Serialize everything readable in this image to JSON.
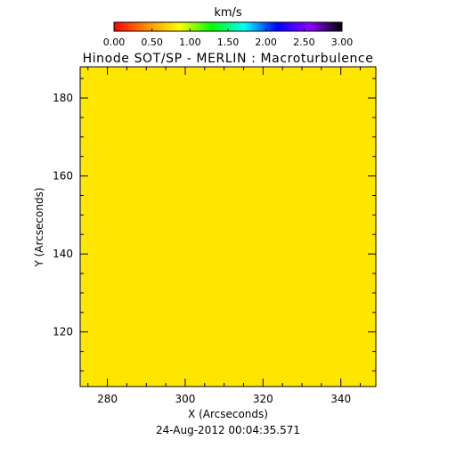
{
  "chart_data": {
    "type": "heatmap",
    "title": "Hinode SOT/SP - MERLIN : Macroturbulence",
    "xlabel": "X (Arcseconds)",
    "ylabel": "Y (Arcseconds)",
    "xlim": [
      273,
      349
    ],
    "ylim": [
      106,
      188
    ],
    "x_ticks": [
      280,
      300,
      320,
      340
    ],
    "y_ticks": [
      120,
      140,
      160,
      180
    ],
    "x_tick_labels": [
      "280",
      "300",
      "320",
      "340"
    ],
    "y_tick_labels": [
      "120",
      "140",
      "160",
      "180"
    ],
    "x_minor_step": 5,
    "y_minor_step": 5,
    "field_value_kms": 1.0,
    "field_color": "#ffe600",
    "colorbar": {
      "label": "km/s",
      "range": [
        0.0,
        3.0
      ],
      "ticks": [
        0.0,
        0.5,
        1.0,
        1.5,
        2.0,
        2.5,
        3.0
      ],
      "tick_labels": [
        "0.00",
        "0.50",
        "1.00",
        "1.50",
        "2.00",
        "2.50",
        "3.00"
      ],
      "colormap": [
        "#ff0000",
        "#ff8c00",
        "#ffff00",
        "#00ff00",
        "#00ffff",
        "#0000ff",
        "#8b00ff",
        "#000000"
      ]
    },
    "timestamp": "24-Aug-2012 00:04:35.571"
  }
}
